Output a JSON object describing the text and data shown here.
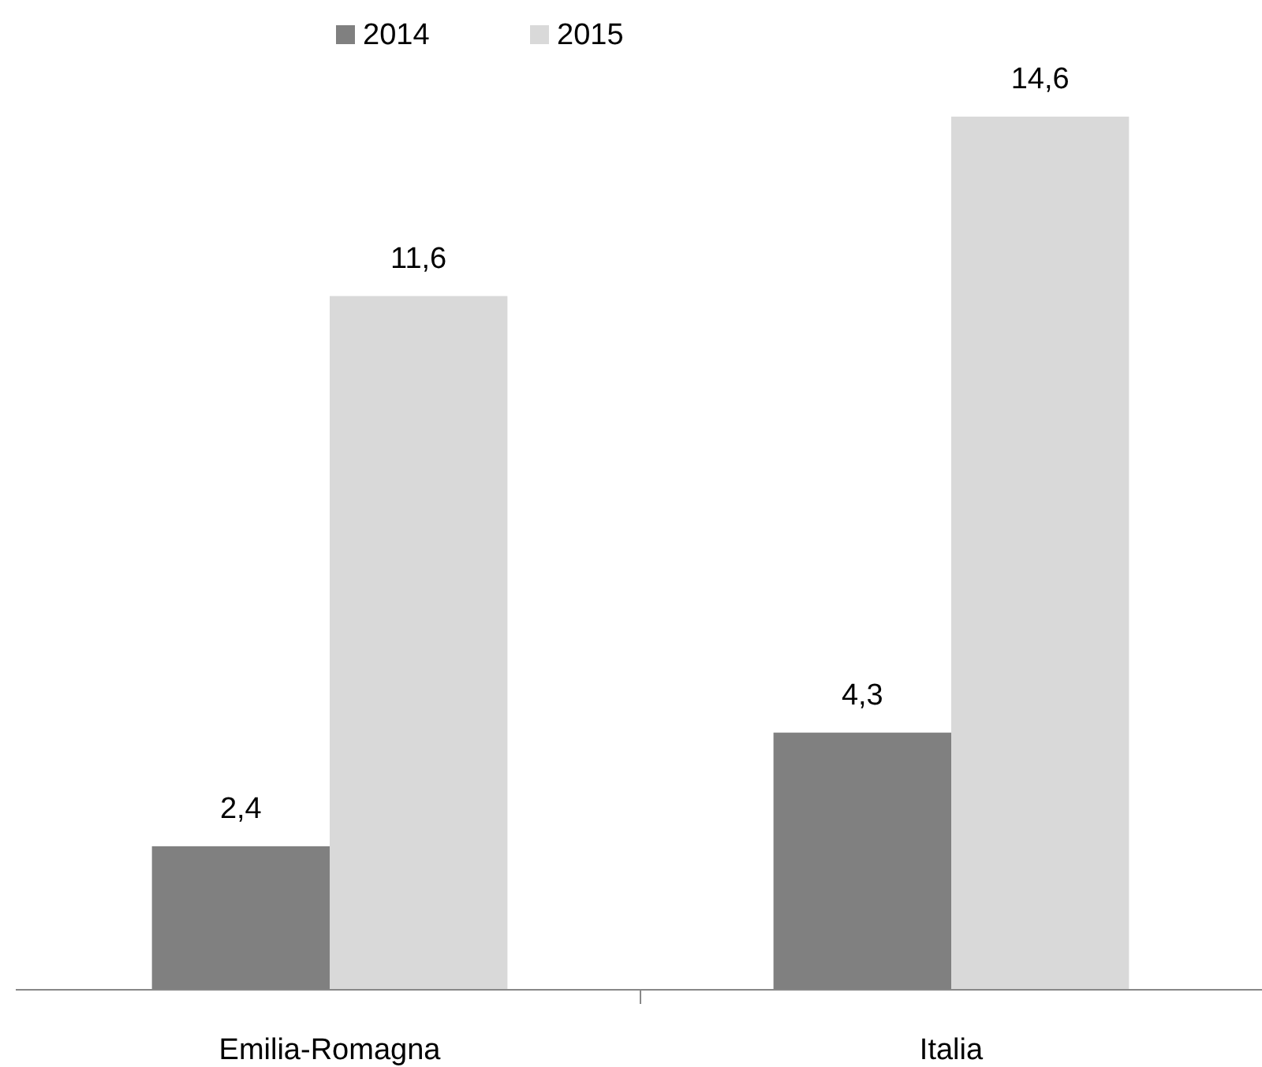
{
  "chart_data": {
    "type": "bar",
    "categories": [
      "Emilia-Romagna",
      "Italia"
    ],
    "legend": "top",
    "series": [
      {
        "name": "2014",
        "color": "#808080",
        "values": [
          2.4,
          4.3
        ],
        "value_labels": [
          "2,4",
          "4,3"
        ]
      },
      {
        "name": "2015",
        "color": "#d9d9d9",
        "values": [
          11.6,
          14.6
        ],
        "value_labels": [
          "11,6",
          "14,6"
        ]
      }
    ]
  }
}
